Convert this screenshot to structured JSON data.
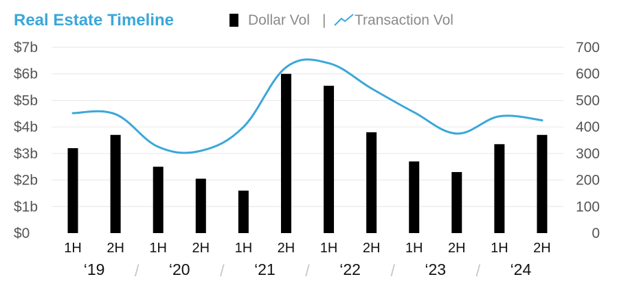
{
  "chart_data": {
    "type": "bar+line",
    "title": "Real Estate Timeline",
    "legend": {
      "placement": "top",
      "items": [
        {
          "name": "Dollar Vol",
          "marker": "bar"
        },
        {
          "name": "Transaction Vol",
          "marker": "line"
        }
      ],
      "separator": "|"
    },
    "categories": [
      "1H",
      "2H",
      "1H",
      "2H",
      "1H",
      "2H",
      "1H",
      "2H",
      "1H",
      "2H",
      "1H",
      "2H"
    ],
    "year_labels": [
      "‘19",
      "‘20",
      "‘21",
      "‘22",
      "‘23",
      "‘24"
    ],
    "year_separator": "/",
    "series": [
      {
        "name": "Dollar Vol",
        "type": "bar",
        "axis": "left",
        "color": "#000000",
        "values": [
          3.2,
          3.7,
          2.5,
          2.05,
          1.6,
          6.0,
          5.55,
          3.8,
          2.7,
          2.3,
          3.35,
          3.7
        ]
      },
      {
        "name": "Transaction Vol",
        "type": "line",
        "axis": "right",
        "color": "#3aa7d9",
        "values": [
          452,
          448,
          325,
          310,
          400,
          625,
          640,
          545,
          455,
          375,
          440,
          425
        ]
      }
    ],
    "y_left": {
      "min": 0,
      "max": 7,
      "ticks": [
        0,
        1,
        2,
        3,
        4,
        5,
        6,
        7
      ],
      "tick_labels": [
        "$0",
        "$1b",
        "$2b",
        "$3b",
        "$4b",
        "$5b",
        "$6b",
        "$7b"
      ]
    },
    "y_right": {
      "min": 0,
      "max": 700,
      "ticks": [
        0,
        100,
        200,
        300,
        400,
        500,
        600,
        700
      ],
      "tick_labels": [
        "0",
        "100",
        "200",
        "300",
        "400",
        "500",
        "600",
        "700"
      ]
    },
    "grid": true,
    "colors": {
      "accent": "#3aa7d9",
      "bar": "#000000",
      "grid": "#e6e6e6",
      "separator": "#c8c8c8"
    }
  }
}
